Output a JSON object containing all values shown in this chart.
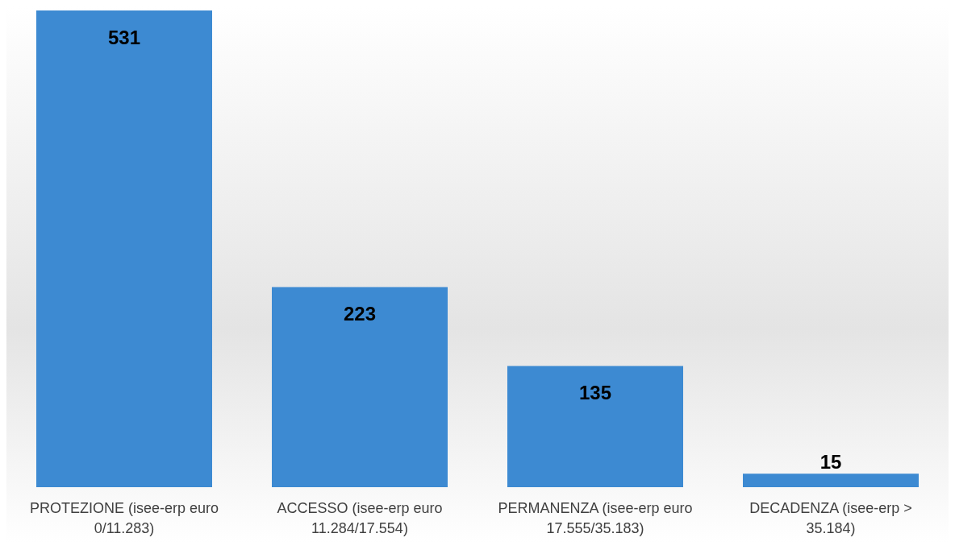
{
  "chart_data": {
    "type": "bar",
    "categories": [
      "PROTEZIONE (isee-erp euro 0/11.283)",
      "ACCESSO (isee-erp euro 11.284/17.554)",
      "PERMANENZA (isee-erp euro 17.555/35.183)",
      "DECADENZA (isee-erp > 35.184)"
    ],
    "values": [
      531,
      223,
      135,
      15
    ],
    "color": "#3d8ad2",
    "data_labels": true,
    "grid": false,
    "legend": false
  }
}
